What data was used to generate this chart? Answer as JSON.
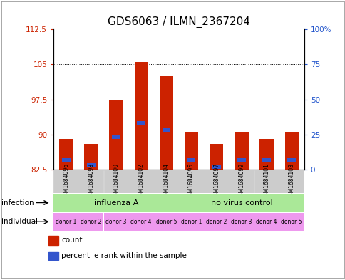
{
  "title": "GDS6063 / ILMN_2367204",
  "samples": [
    "GSM1684096",
    "GSM1684098",
    "GSM1684100",
    "GSM1684102",
    "GSM1684104",
    "GSM1684095",
    "GSM1684097",
    "GSM1684099",
    "GSM1684101",
    "GSM1684103"
  ],
  "bar_bottoms": [
    82.5,
    82.5,
    82.5,
    82.5,
    82.5,
    82.5,
    82.5,
    82.5,
    82.5,
    82.5
  ],
  "bar_tops": [
    89.0,
    88.0,
    97.5,
    105.5,
    102.5,
    90.5,
    88.0,
    90.5,
    89.0,
    90.5
  ],
  "blue_positions": [
    84.5,
    83.5,
    89.5,
    92.5,
    91.0,
    84.5,
    83.0,
    84.5,
    84.5,
    84.5
  ],
  "ylim_left": [
    82.5,
    112.5
  ],
  "ylim_right": [
    0,
    100
  ],
  "yticks_left": [
    82.5,
    90,
    97.5,
    105,
    112.5
  ],
  "yticks_right": [
    0,
    25,
    50,
    75,
    100
  ],
  "ytick_labels_left": [
    "82.5",
    "90",
    "97.5",
    "105",
    "112.5"
  ],
  "ytick_labels_right": [
    "0",
    "25",
    "50",
    "75",
    "100%"
  ],
  "hlines": [
    90,
    97.5,
    105
  ],
  "bar_color": "#cc2200",
  "blue_color": "#3355cc",
  "infection_labels": [
    "influenza A",
    "no virus control"
  ],
  "infection_bg": "#aae898",
  "individual_labels": [
    "donor 1",
    "donor 2",
    "donor 3",
    "donor 4",
    "donor 5",
    "donor 1",
    "donor 2",
    "donor 3",
    "donor 4",
    "donor 5"
  ],
  "individual_bg": "#ee99ee",
  "left_label_color": "#cc2200",
  "right_label_color": "#2255cc",
  "title_fontsize": 11,
  "legend_items": [
    "count",
    "percentile rank within the sample"
  ],
  "legend_colors": [
    "#cc2200",
    "#3355cc"
  ],
  "sample_bg": "#cccccc"
}
